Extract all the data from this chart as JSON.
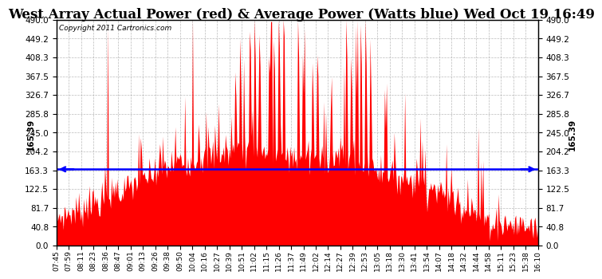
{
  "title": "West Array Actual Power (red) & Average Power (Watts blue) Wed Oct 19 16:49",
  "copyright": "Copyright 2011 Cartronics.com",
  "avg_power": 165.39,
  "ylim": [
    0.0,
    490.0
  ],
  "yticks": [
    0.0,
    40.8,
    81.7,
    122.5,
    163.3,
    204.2,
    245.0,
    285.8,
    326.7,
    367.5,
    408.3,
    449.2,
    490.0
  ],
  "ytick_labels": [
    "0.0",
    "40.8",
    "81.7",
    "122.5",
    "163.3",
    "204.2",
    "245.0",
    "285.8",
    "326.7",
    "367.5",
    "408.3",
    "449.2",
    "490.0"
  ],
  "bar_color": "#FF0000",
  "line_color": "#0000FF",
  "background_color": "#FFFFFF",
  "grid_color": "#AAAAAA",
  "title_fontsize": 12,
  "axis_fontsize": 7.5,
  "xtick_labels": [
    "07:45",
    "07:59",
    "08:11",
    "08:23",
    "08:36",
    "08:47",
    "09:01",
    "09:13",
    "09:26",
    "09:38",
    "09:50",
    "10:04",
    "10:16",
    "10:27",
    "10:39",
    "10:51",
    "11:02",
    "11:15",
    "11:26",
    "11:37",
    "11:49",
    "12:02",
    "12:14",
    "12:27",
    "12:39",
    "12:53",
    "13:05",
    "13:18",
    "13:30",
    "13:41",
    "13:54",
    "14:07",
    "14:18",
    "14:32",
    "14:44",
    "14:58",
    "15:11",
    "15:23",
    "15:38",
    "16:10"
  ]
}
